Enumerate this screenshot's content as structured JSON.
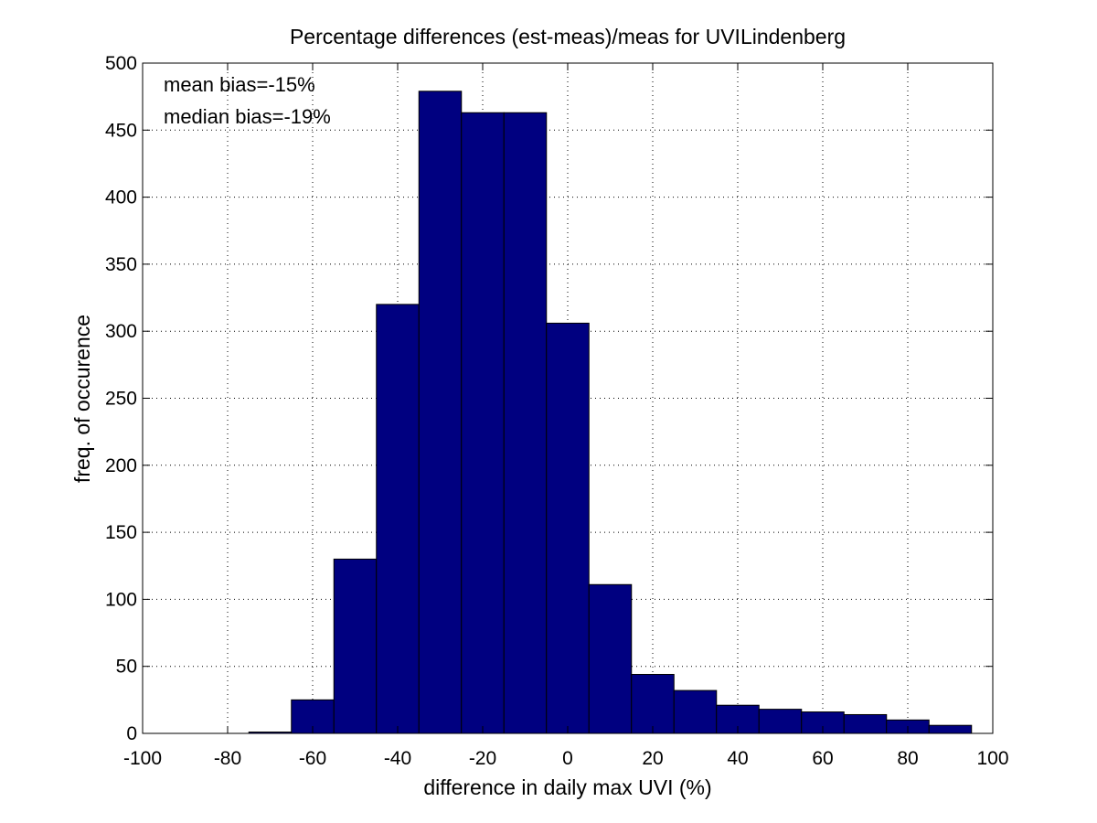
{
  "chart_data": {
    "type": "bar",
    "title": "Percentage differences (est-meas)/meas for UVILindenberg",
    "xlabel": "difference in daily max UVI (%)",
    "ylabel": "freq. of occurence",
    "xlim": [
      -100,
      100
    ],
    "ylim": [
      0,
      500
    ],
    "xticks": [
      -100,
      -80,
      -60,
      -40,
      -20,
      0,
      20,
      40,
      60,
      80,
      100
    ],
    "yticks": [
      0,
      50,
      100,
      150,
      200,
      250,
      300,
      350,
      400,
      450,
      500
    ],
    "grid": true,
    "bar_color": "#000080",
    "bin_width": 10,
    "bin_centers": [
      -90,
      -80,
      -70,
      -60,
      -50,
      -40,
      -30,
      -20,
      -10,
      0,
      10,
      20,
      30,
      40,
      50,
      60,
      70,
      80,
      90
    ],
    "values": [
      0,
      0,
      1,
      25,
      130,
      320,
      479,
      463,
      463,
      306,
      111,
      44,
      32,
      21,
      18,
      16,
      14,
      10,
      6
    ],
    "annotations": [
      "mean bias=-15%",
      "median bias=-19%"
    ]
  }
}
